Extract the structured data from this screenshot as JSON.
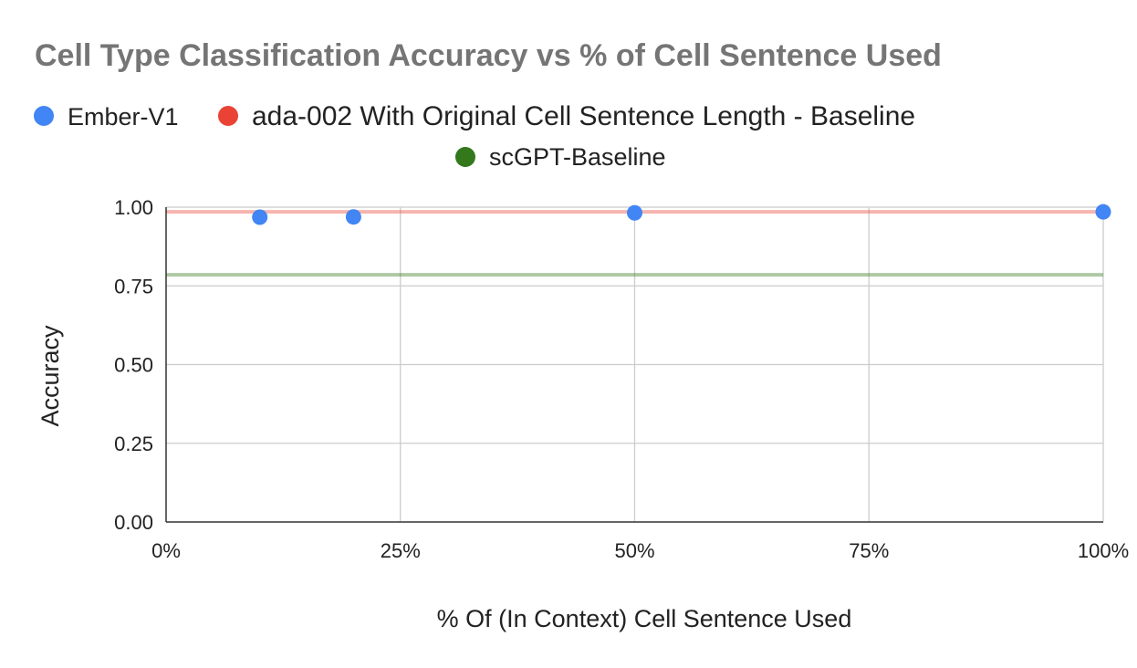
{
  "chart_data": {
    "type": "scatter",
    "title": "Cell Type Classification Accuracy vs % of Cell Sentence Used",
    "xlabel": "% Of (In Context) Cell Sentence Used",
    "ylabel": "Accuracy",
    "xlim": [
      0,
      100
    ],
    "ylim": [
      0,
      1
    ],
    "x_ticks": [
      "0%",
      "25%",
      "50%",
      "75%",
      "100%"
    ],
    "y_ticks": [
      "0.00",
      "0.25",
      "0.50",
      "0.75",
      "1.00"
    ],
    "grid": true,
    "legend_position": "top",
    "series": [
      {
        "name": "Ember-V1",
        "kind": "scatter",
        "color": "#4285f4",
        "points": [
          {
            "x": 10,
            "y": 0.968
          },
          {
            "x": 20,
            "y": 0.969
          },
          {
            "x": 50,
            "y": 0.982
          },
          {
            "x": 100,
            "y": 0.985
          }
        ]
      },
      {
        "name": "ada-002 With Original Cell Sentence Length - Baseline",
        "kind": "hline",
        "color": "#ea4335",
        "y": 0.985
      },
      {
        "name": "scGPT-Baseline",
        "kind": "hline",
        "color": "#34781c",
        "y": 0.785
      }
    ]
  }
}
